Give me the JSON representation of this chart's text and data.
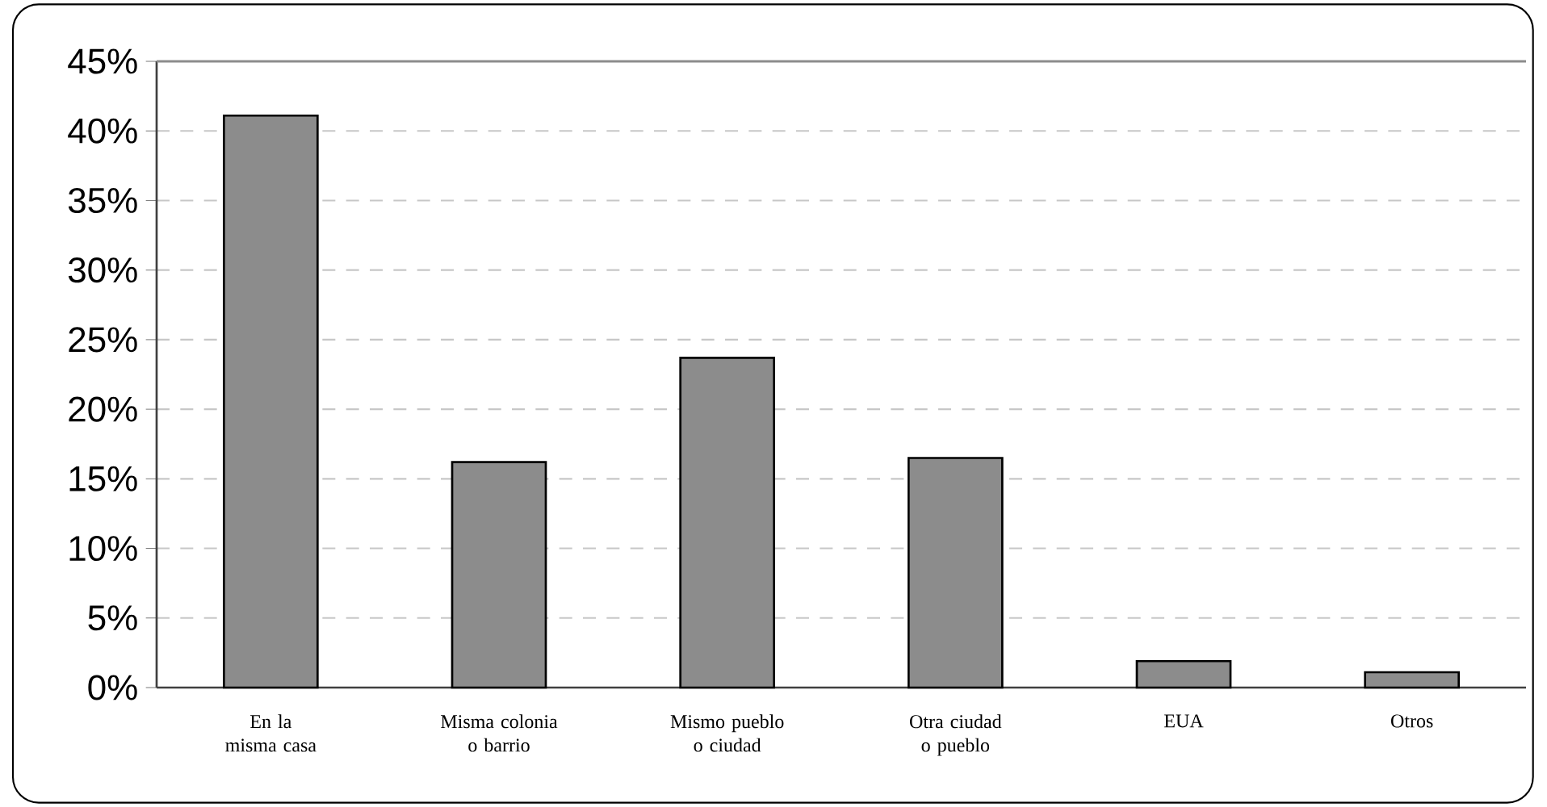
{
  "chart_data": {
    "type": "bar",
    "categories": [
      "En la misma casa",
      "Misma colonia o barrio",
      "Mismo pueblo o ciudad",
      "Otra ciudad o pueblo",
      "EUA",
      "Otros"
    ],
    "values": [
      41.1,
      16.2,
      23.7,
      16.5,
      1.9,
      1.1
    ],
    "color": "#8c8c8c",
    "ylim": [
      0,
      45
    ],
    "yticks": [
      {
        "value": 0,
        "label": "0%"
      },
      {
        "value": 5,
        "label": "5%"
      },
      {
        "value": 10,
        "label": "10%"
      },
      {
        "value": 15,
        "label": "15%"
      },
      {
        "value": 20,
        "label": "20%"
      },
      {
        "value": 25,
        "label": "25%"
      },
      {
        "value": 30,
        "label": "30%"
      },
      {
        "value": 35,
        "label": "35%"
      },
      {
        "value": 40,
        "label": "40%"
      },
      {
        "value": 45,
        "label": "45%"
      }
    ],
    "grid": "y"
  }
}
